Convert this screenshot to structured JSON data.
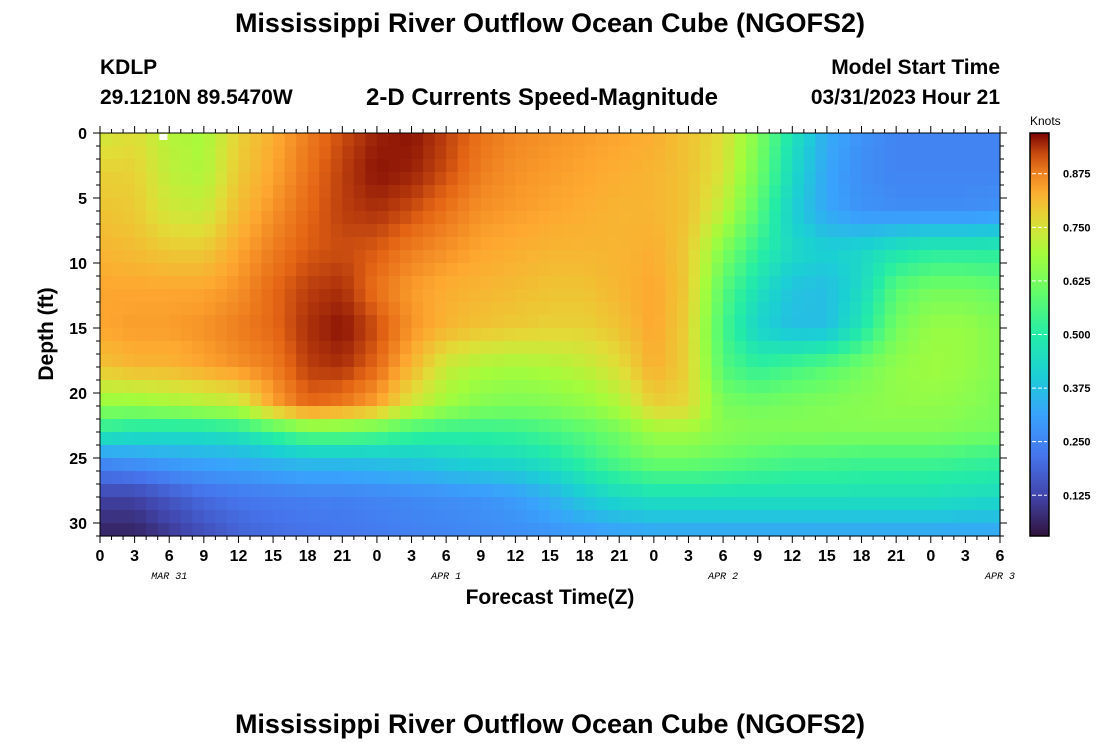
{
  "header": {
    "title": "Mississippi River Outflow Ocean Cube (NGOFS2)",
    "station_id": "KDLP",
    "station_coords": "29.1210N  89.5470W",
    "subtitle": "2-D Currents Speed-Magnitude",
    "model_start_label": "Model Start Time",
    "model_start_value": "03/31/2023 Hour 21"
  },
  "footer": {
    "title": "Mississippi River Outflow Ocean Cube (NGOFS2)"
  },
  "chart_data": {
    "type": "heatmap",
    "title": "2-D Currents Speed-Magnitude",
    "xlabel": "Forecast Time(Z)",
    "ylabel": "Depth (ft)",
    "colorbar_label": "Knots",
    "x_tick_labels": [
      "0",
      "3",
      "6",
      "9",
      "12",
      "15",
      "18",
      "21",
      "0",
      "3",
      "6",
      "9",
      "12",
      "15",
      "18",
      "21",
      "0",
      "3",
      "6",
      "9",
      "12",
      "15",
      "18",
      "21",
      "0",
      "3",
      "6"
    ],
    "date_labels": [
      {
        "label": "MAR 31",
        "hour": 0
      },
      {
        "label": "APR 1",
        "hour": 24
      },
      {
        "label": "APR 2",
        "hour": 48
      },
      {
        "label": "APR 3",
        "hour": 72
      }
    ],
    "xlim_hours": [
      0,
      78
    ],
    "ylim": [
      0,
      31
    ],
    "y_tick_labels": [
      "0",
      "5",
      "10",
      "15",
      "20",
      "25",
      "30"
    ],
    "colorbar_ticks": [
      "0.875",
      "0.750",
      "0.625",
      "0.500",
      "0.375",
      "0.250",
      "0.125"
    ],
    "colorbar_range": [
      0.03,
      0.97
    ],
    "grid": false,
    "x_hours": [
      0,
      3,
      6,
      9,
      12,
      15,
      18,
      21,
      24,
      27,
      30,
      33,
      36,
      39,
      42,
      45,
      48,
      51,
      54,
      57,
      60,
      63,
      66,
      69,
      72,
      75,
      78
    ],
    "depth_ft": [
      0,
      3,
      6,
      9,
      12,
      15,
      18,
      21,
      23,
      25,
      28,
      31
    ],
    "values": [
      [
        0.74,
        0.76,
        0.71,
        0.69,
        0.78,
        0.83,
        0.88,
        0.92,
        0.95,
        0.96,
        0.93,
        0.89,
        0.87,
        0.86,
        0.85,
        0.84,
        0.83,
        0.8,
        0.76,
        0.64,
        0.47,
        0.33,
        0.28,
        0.25,
        0.25,
        0.25,
        0.25
      ],
      [
        0.78,
        0.78,
        0.72,
        0.7,
        0.79,
        0.84,
        0.89,
        0.93,
        0.96,
        0.95,
        0.92,
        0.88,
        0.86,
        0.85,
        0.84,
        0.83,
        0.82,
        0.8,
        0.75,
        0.62,
        0.44,
        0.32,
        0.27,
        0.25,
        0.25,
        0.25,
        0.25
      ],
      [
        0.8,
        0.79,
        0.74,
        0.73,
        0.81,
        0.86,
        0.9,
        0.93,
        0.94,
        0.92,
        0.89,
        0.86,
        0.85,
        0.84,
        0.83,
        0.82,
        0.82,
        0.8,
        0.72,
        0.58,
        0.41,
        0.32,
        0.28,
        0.27,
        0.27,
        0.27,
        0.28
      ],
      [
        0.82,
        0.81,
        0.79,
        0.79,
        0.84,
        0.88,
        0.91,
        0.92,
        0.91,
        0.88,
        0.86,
        0.84,
        0.83,
        0.82,
        0.82,
        0.82,
        0.83,
        0.79,
        0.64,
        0.52,
        0.44,
        0.41,
        0.43,
        0.47,
        0.5,
        0.5,
        0.5
      ],
      [
        0.84,
        0.84,
        0.84,
        0.84,
        0.86,
        0.9,
        0.93,
        0.94,
        0.89,
        0.85,
        0.83,
        0.82,
        0.81,
        0.8,
        0.8,
        0.82,
        0.84,
        0.79,
        0.58,
        0.46,
        0.38,
        0.37,
        0.44,
        0.58,
        0.62,
        0.62,
        0.6
      ],
      [
        0.84,
        0.85,
        0.85,
        0.86,
        0.88,
        0.9,
        0.94,
        0.96,
        0.92,
        0.86,
        0.82,
        0.8,
        0.79,
        0.78,
        0.78,
        0.8,
        0.84,
        0.78,
        0.55,
        0.42,
        0.37,
        0.37,
        0.48,
        0.62,
        0.67,
        0.67,
        0.64
      ],
      [
        0.8,
        0.82,
        0.82,
        0.84,
        0.86,
        0.88,
        0.93,
        0.94,
        0.9,
        0.82,
        0.73,
        0.7,
        0.69,
        0.7,
        0.72,
        0.76,
        0.83,
        0.78,
        0.57,
        0.52,
        0.55,
        0.58,
        0.62,
        0.66,
        0.68,
        0.67,
        0.64
      ],
      [
        0.66,
        0.66,
        0.68,
        0.7,
        0.72,
        0.84,
        0.9,
        0.88,
        0.84,
        0.74,
        0.68,
        0.64,
        0.63,
        0.64,
        0.66,
        0.7,
        0.78,
        0.77,
        0.63,
        0.62,
        0.63,
        0.64,
        0.65,
        0.66,
        0.66,
        0.65,
        0.63
      ],
      [
        0.5,
        0.47,
        0.46,
        0.46,
        0.48,
        0.54,
        0.6,
        0.6,
        0.58,
        0.54,
        0.52,
        0.52,
        0.53,
        0.55,
        0.58,
        0.62,
        0.68,
        0.68,
        0.65,
        0.64,
        0.64,
        0.64,
        0.64,
        0.64,
        0.64,
        0.63,
        0.62
      ],
      [
        0.28,
        0.3,
        0.32,
        0.33,
        0.34,
        0.36,
        0.38,
        0.38,
        0.39,
        0.4,
        0.42,
        0.44,
        0.45,
        0.48,
        0.53,
        0.58,
        0.62,
        0.62,
        0.6,
        0.58,
        0.56,
        0.56,
        0.55,
        0.55,
        0.55,
        0.54,
        0.53
      ],
      [
        0.12,
        0.12,
        0.16,
        0.2,
        0.22,
        0.23,
        0.24,
        0.24,
        0.25,
        0.26,
        0.27,
        0.28,
        0.3,
        0.34,
        0.4,
        0.44,
        0.46,
        0.46,
        0.46,
        0.46,
        0.46,
        0.46,
        0.46,
        0.46,
        0.46,
        0.45,
        0.44
      ],
      [
        0.06,
        0.06,
        0.1,
        0.14,
        0.18,
        0.2,
        0.21,
        0.22,
        0.23,
        0.24,
        0.25,
        0.26,
        0.27,
        0.28,
        0.29,
        0.3,
        0.31,
        0.31,
        0.31,
        0.31,
        0.31,
        0.31,
        0.31,
        0.31,
        0.31,
        0.31,
        0.31
      ]
    ]
  }
}
